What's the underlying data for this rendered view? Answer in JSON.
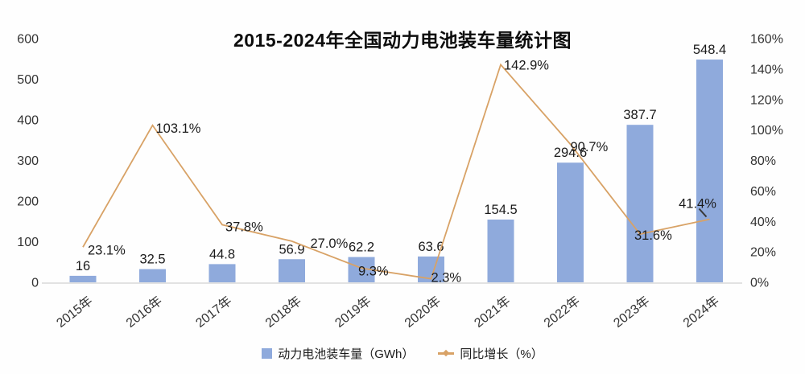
{
  "header": {
    "title": "2015-2024年全国动力电池装车量统计图"
  },
  "legend": {
    "bar": {
      "label": "动力电池装车量（GWh）",
      "swatch_color": "#8FAADC"
    },
    "line": {
      "label": "同比增长（%）",
      "swatch_color": "#D8A266"
    }
  },
  "colors": {
    "axis_line": "#D9D9D9",
    "leader": "#3a3a3a",
    "text": "#1b1b1b"
  },
  "chart_data": {
    "type": "bar",
    "subtype": "combo-bar-line-dual-axis",
    "title": "2015-2024年全国动力电池装车量统计图",
    "categories": [
      "2015年",
      "2016年",
      "2017年",
      "2018年",
      "2019年",
      "2020年",
      "2021年",
      "2022年",
      "2023年",
      "2024年"
    ],
    "series": [
      {
        "name": "动力电池装车量（GWh）",
        "type": "bar",
        "axis": "left",
        "color": "#8FAADC",
        "values": [
          16,
          32.5,
          44.8,
          56.9,
          62.2,
          63.6,
          154.5,
          294.6,
          387.7,
          548.4
        ],
        "labels": [
          "16",
          "32.5",
          "44.8",
          "56.9",
          "62.2",
          "63.6",
          "154.5",
          "294.6",
          "387.7",
          "548.4"
        ]
      },
      {
        "name": "同比增长（%）",
        "type": "line",
        "axis": "right",
        "color": "#D8A266",
        "values": [
          23.1,
          103.1,
          37.8,
          27.0,
          9.3,
          2.3,
          142.9,
          90.7,
          31.6,
          41.4
        ],
        "labels": [
          "23.1%",
          "103.1%",
          "37.8%",
          "27.0%",
          "9.3%",
          "2.3%",
          "142.9%",
          "90.7%",
          "31.6%",
          "41.4%"
        ]
      }
    ],
    "left_axis": {
      "min": 0,
      "max": 600,
      "tick_step": 100,
      "tick_labels": [
        "0",
        "100",
        "200",
        "300",
        "400",
        "500",
        "600"
      ]
    },
    "right_axis": {
      "min": 0,
      "max": 160,
      "tick_step": 20,
      "tick_labels": [
        "0%",
        "20%",
        "40%",
        "60%",
        "80%",
        "100%",
        "120%",
        "140%",
        "160%"
      ]
    },
    "grid": false,
    "legend_position": "bottom"
  }
}
